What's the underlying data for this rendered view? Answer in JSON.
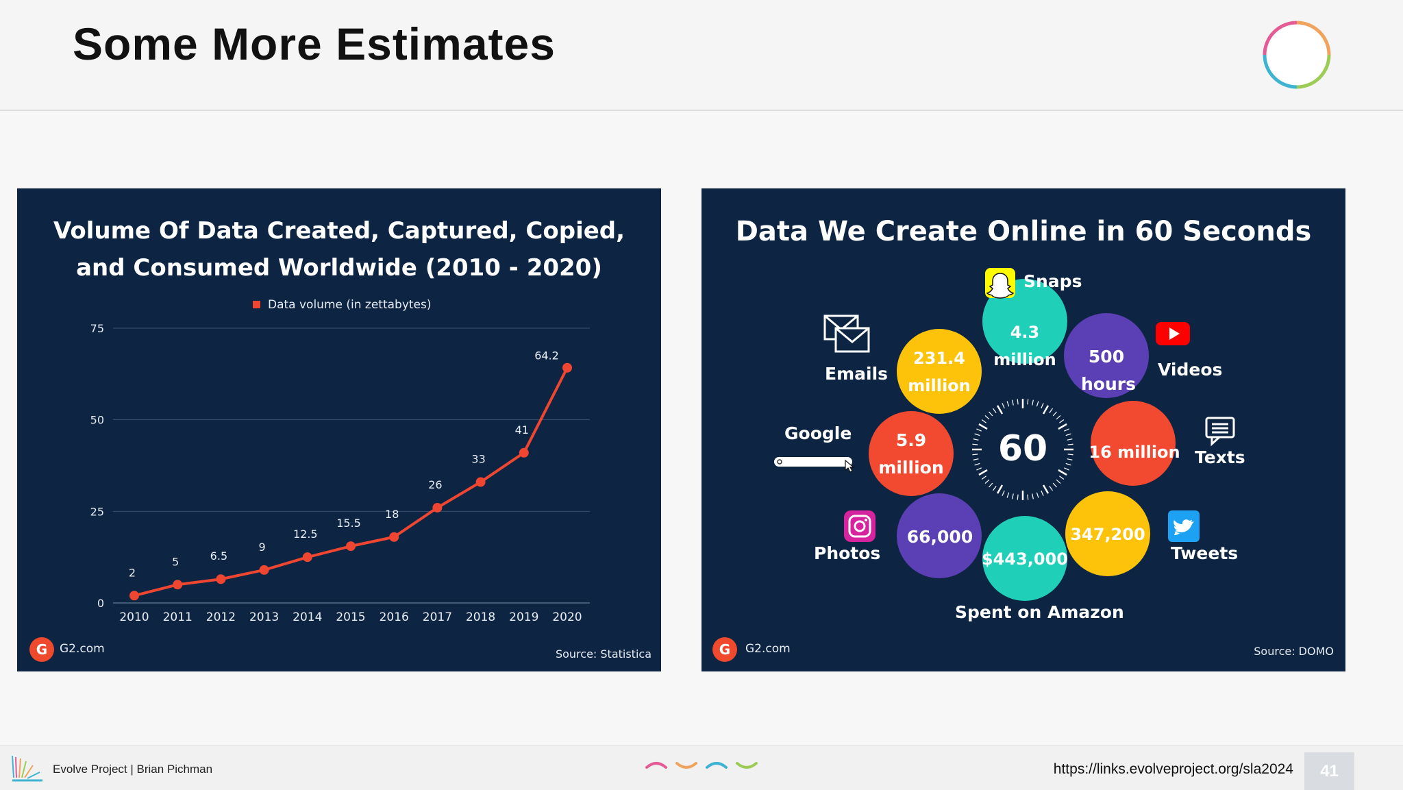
{
  "slide": {
    "title": "Some More Estimates",
    "page_number": "41",
    "footer_label": "Evolve Project | Brian Pichman",
    "footer_url": "https://links.evolveproject.org/sla2024"
  },
  "colors": {
    "panel_bg": "#0d2443",
    "line": "#ef4631",
    "teal": "#1fcfb8",
    "yellow": "#fcc30a",
    "purple": "#5b3fb4",
    "red": "#f24a30",
    "g2_red": "#ef4a2e"
  },
  "left_panel": {
    "title_line1": "Volume Of Data Created, Captured, Copied,",
    "title_line2": "and Consumed Worldwide (2010 - 2020)",
    "brand": "G2.com",
    "source": "Source: Statistica"
  },
  "chart_data": {
    "type": "line",
    "title": "Volume Of Data Created, Captured, Copied, and Consumed Worldwide (2010 - 2020)",
    "legend": "Data volume (in zettabytes)",
    "legend_position": "top-center",
    "categories": [
      "2010",
      "2011",
      "2012",
      "2013",
      "2014",
      "2015",
      "2016",
      "2017",
      "2018",
      "2019",
      "2020"
    ],
    "values": [
      2,
      5,
      6.5,
      9,
      12.5,
      15.5,
      18,
      26,
      33,
      41,
      64.2
    ],
    "data_labels": [
      "2",
      "5",
      "6.5",
      "9",
      "12.5",
      "15.5",
      "18",
      "26",
      "33",
      "41",
      "64.2"
    ],
    "y_ticks": [
      0,
      25,
      50,
      75
    ],
    "ylim": [
      0,
      75
    ],
    "grid": true,
    "xlabel": "",
    "ylabel": ""
  },
  "right_panel": {
    "title": "Data We Create Online in 60 Seconds",
    "center_value": "60",
    "brand": "G2.com",
    "source": "Source: DOMO",
    "circles": [
      {
        "id": "snaps",
        "line1": "4.3",
        "line2": "million",
        "color": "teal"
      },
      {
        "id": "videos",
        "line1": "500",
        "line2": "hours",
        "color": "purple"
      },
      {
        "id": "texts",
        "line1": "16 million",
        "line2": "",
        "color": "red"
      },
      {
        "id": "tweets",
        "line1": "347,200",
        "line2": "",
        "color": "yellow"
      },
      {
        "id": "amazon",
        "line1": "$443,000",
        "line2": "",
        "color": "teal"
      },
      {
        "id": "photos",
        "line1": "66,000",
        "line2": "",
        "color": "purple"
      },
      {
        "id": "google",
        "line1": "5.9",
        "line2": "million",
        "color": "red"
      },
      {
        "id": "emails",
        "line1": "231.4",
        "line2": "million",
        "color": "yellow"
      }
    ],
    "labels": {
      "snaps": "Snaps",
      "videos": "Videos",
      "texts": "Texts",
      "tweets": "Tweets",
      "amazon": "Spent on Amazon",
      "photos": "Photos",
      "google": "Google",
      "emails": "Emails"
    }
  }
}
